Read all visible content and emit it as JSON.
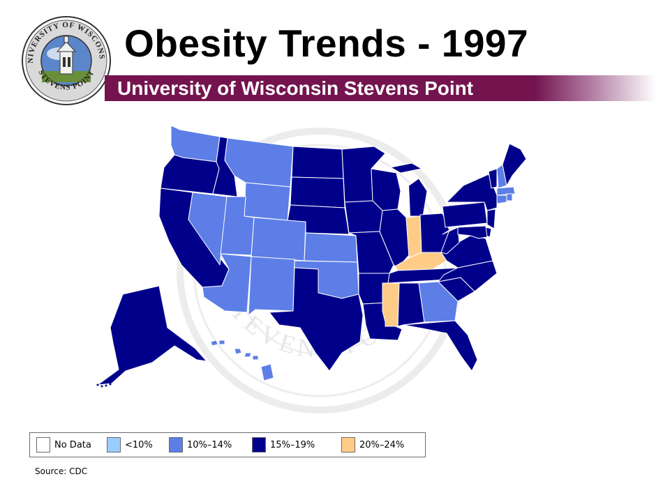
{
  "header": {
    "title": "Obesity Trends - 1997",
    "subtitle": "University of Wisconsin Stevens Point",
    "logo_text_top": "UNIVERSITY OF WISCONSIN",
    "logo_text_bottom": "STEVENS POINT"
  },
  "watermark": {
    "text": "STEVENS POINT"
  },
  "colors": {
    "no_data": "#ffffff",
    "lt10": "#99ccff",
    "c10_14": "#5c7ee6",
    "c15_19": "#00008b",
    "c20_24": "#ffcc88",
    "band": "#73144f"
  },
  "map": {
    "states": [
      {
        "name": "Washington",
        "category": "10%–14%"
      },
      {
        "name": "Oregon",
        "category": "15%–19%"
      },
      {
        "name": "California",
        "category": "15%–19%"
      },
      {
        "name": "Idaho",
        "category": "15%–19%"
      },
      {
        "name": "Nevada",
        "category": "10%–14%"
      },
      {
        "name": "Montana",
        "category": "10%–14%"
      },
      {
        "name": "Wyoming",
        "category": "10%–14%"
      },
      {
        "name": "Utah",
        "category": "10%–14%"
      },
      {
        "name": "Colorado",
        "category": "10%–14%"
      },
      {
        "name": "Arizona",
        "category": "10%–14%"
      },
      {
        "name": "New Mexico",
        "category": "10%–14%"
      },
      {
        "name": "North Dakota",
        "category": "15%–19%"
      },
      {
        "name": "South Dakota",
        "category": "15%–19%"
      },
      {
        "name": "Nebraska",
        "category": "15%–19%"
      },
      {
        "name": "Kansas",
        "category": "10%–14%"
      },
      {
        "name": "Oklahoma",
        "category": "10%–14%"
      },
      {
        "name": "Texas",
        "category": "15%–19%"
      },
      {
        "name": "Minnesota",
        "category": "15%–19%"
      },
      {
        "name": "Iowa",
        "category": "15%–19%"
      },
      {
        "name": "Missouri",
        "category": "15%–19%"
      },
      {
        "name": "Arkansas",
        "category": "15%–19%"
      },
      {
        "name": "Louisiana",
        "category": "15%–19%"
      },
      {
        "name": "Wisconsin",
        "category": "15%–19%"
      },
      {
        "name": "Illinois",
        "category": "15%–19%"
      },
      {
        "name": "Michigan",
        "category": "15%–19%"
      },
      {
        "name": "Indiana",
        "category": "20%–24%"
      },
      {
        "name": "Ohio",
        "category": "15%–19%"
      },
      {
        "name": "Kentucky",
        "category": "20%–24%"
      },
      {
        "name": "Tennessee",
        "category": "15%–19%"
      },
      {
        "name": "Mississippi",
        "category": "20%–24%"
      },
      {
        "name": "Alabama",
        "category": "15%–19%"
      },
      {
        "name": "Georgia",
        "category": "10%–14%"
      },
      {
        "name": "Florida",
        "category": "15%–19%"
      },
      {
        "name": "South Carolina",
        "category": "15%–19%"
      },
      {
        "name": "North Carolina",
        "category": "15%–19%"
      },
      {
        "name": "Virginia",
        "category": "15%–19%"
      },
      {
        "name": "West Virginia",
        "category": "15%–19%"
      },
      {
        "name": "Pennsylvania",
        "category": "15%–19%"
      },
      {
        "name": "New York",
        "category": "15%–19%"
      },
      {
        "name": "Vermont",
        "category": "15%–19%"
      },
      {
        "name": "New Hampshire",
        "category": "10%–14%"
      },
      {
        "name": "Maine",
        "category": "15%–19%"
      },
      {
        "name": "Massachusetts",
        "category": "10%–14%"
      },
      {
        "name": "Connecticut",
        "category": "10%–14%"
      },
      {
        "name": "Rhode Island",
        "category": "10%–14%"
      },
      {
        "name": "New Jersey",
        "category": "15%–19%"
      },
      {
        "name": "Delaware",
        "category": "15%–19%"
      },
      {
        "name": "Maryland",
        "category": "15%–19%"
      },
      {
        "name": "Alaska",
        "category": "15%–19%"
      },
      {
        "name": "Hawaii",
        "category": "10%–14%"
      }
    ]
  },
  "legend": {
    "items": [
      {
        "label": "No Data",
        "color": "#ffffff"
      },
      {
        "label": "<10%",
        "color": "#99ccff"
      },
      {
        "label": "10%–14%",
        "color": "#5c7ee6"
      },
      {
        "label": "15%–19%",
        "color": "#00008b"
      },
      {
        "label": "20%–24%",
        "color": "#ffcc88"
      }
    ]
  },
  "source": "Source: CDC"
}
